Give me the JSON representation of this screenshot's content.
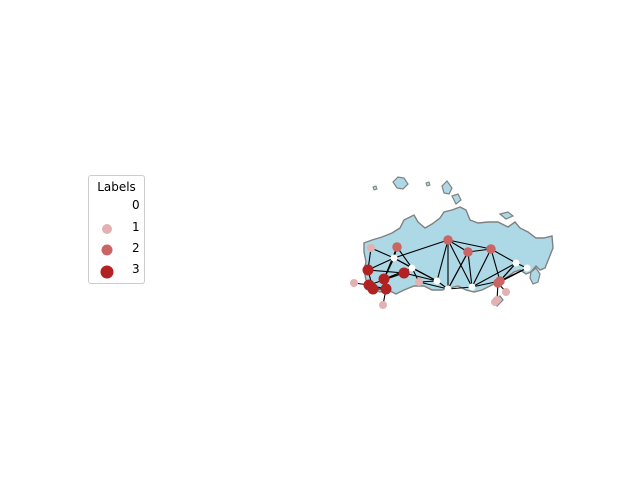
{
  "legend": {
    "title": "Labels",
    "items": [
      {
        "label": "0",
        "color": "#ffffff"
      },
      {
        "label": "1",
        "color": "#e3b1b1"
      },
      {
        "label": "2",
        "color": "#c96565"
      },
      {
        "label": "3",
        "color": "#b22222"
      }
    ]
  },
  "map": {
    "land_fill": "#add8e6",
    "border_color": "#808080",
    "edge_color": "#000000",
    "node_label_colors": [
      "#ffffff",
      "#e3b1b1",
      "#c96565",
      "#b22222"
    ]
  },
  "graph": {
    "nodes": [
      {
        "id": "n1",
        "label": 1
      },
      {
        "id": "n2",
        "label": 2
      },
      {
        "id": "n3",
        "label": 2
      },
      {
        "id": "n4",
        "label": 0
      },
      {
        "id": "n5",
        "label": 2
      },
      {
        "id": "n6",
        "label": 0
      },
      {
        "id": "n7",
        "label": 3
      },
      {
        "id": "n8",
        "label": 3
      },
      {
        "id": "n9",
        "label": 0
      },
      {
        "id": "n10",
        "label": 3
      },
      {
        "id": "n11",
        "label": 1
      },
      {
        "id": "n12",
        "label": 3
      },
      {
        "id": "n13",
        "label": 3
      },
      {
        "id": "n14",
        "label": 1
      },
      {
        "id": "n15",
        "label": 1
      },
      {
        "id": "n16",
        "label": 3
      },
      {
        "id": "n17",
        "label": 0
      },
      {
        "id": "n18",
        "label": 2
      },
      {
        "id": "n19",
        "label": 0
      },
      {
        "id": "n20",
        "label": 2
      },
      {
        "id": "n21",
        "label": 2
      },
      {
        "id": "n22",
        "label": 0
      },
      {
        "id": "n23",
        "label": 1
      },
      {
        "id": "n24",
        "label": 1
      },
      {
        "id": "n25",
        "label": 1
      },
      {
        "id": "n26",
        "label": 0
      }
    ],
    "edges": [
      [
        "n1",
        "n4"
      ],
      [
        "n2",
        "n4"
      ],
      [
        "n2",
        "n6"
      ],
      [
        "n4",
        "n6"
      ],
      [
        "n4",
        "n9"
      ],
      [
        "n6",
        "n9"
      ],
      [
        "n4",
        "n8"
      ],
      [
        "n6",
        "n8"
      ],
      [
        "n2",
        "n8"
      ],
      [
        "n1",
        "n7"
      ],
      [
        "n4",
        "n7"
      ],
      [
        "n7",
        "n10"
      ],
      [
        "n8",
        "n10"
      ],
      [
        "n9",
        "n10"
      ],
      [
        "n6",
        "n11"
      ],
      [
        "n9",
        "n17"
      ],
      [
        "n3",
        "n4"
      ],
      [
        "n3",
        "n9"
      ],
      [
        "n3",
        "n17"
      ],
      [
        "n3",
        "n18"
      ],
      [
        "n3",
        "n19"
      ],
      [
        "n3",
        "n5"
      ],
      [
        "n5",
        "n18"
      ],
      [
        "n5",
        "n19"
      ],
      [
        "n5",
        "n22"
      ],
      [
        "n5",
        "n20"
      ],
      [
        "n22",
        "n20"
      ],
      [
        "n22",
        "n21"
      ],
      [
        "n22",
        "n26"
      ],
      [
        "n19",
        "n22"
      ],
      [
        "n18",
        "n19"
      ],
      [
        "n19",
        "n20"
      ],
      [
        "n17",
        "n18"
      ],
      [
        "n17",
        "n19"
      ],
      [
        "n20",
        "n21"
      ],
      [
        "n21",
        "n26"
      ],
      [
        "n20",
        "n26"
      ],
      [
        "n13",
        "n16"
      ],
      [
        "n12",
        "n13"
      ],
      [
        "n10",
        "n16"
      ],
      [
        "n9",
        "n11"
      ],
      [
        "n11",
        "n17"
      ],
      [
        "n21",
        "n24"
      ],
      [
        "n21",
        "n25"
      ],
      [
        "n18",
        "n17"
      ],
      [
        "n7",
        "n12"
      ],
      [
        "n16",
        "n14"
      ],
      [
        "n13",
        "n15"
      ]
    ]
  }
}
